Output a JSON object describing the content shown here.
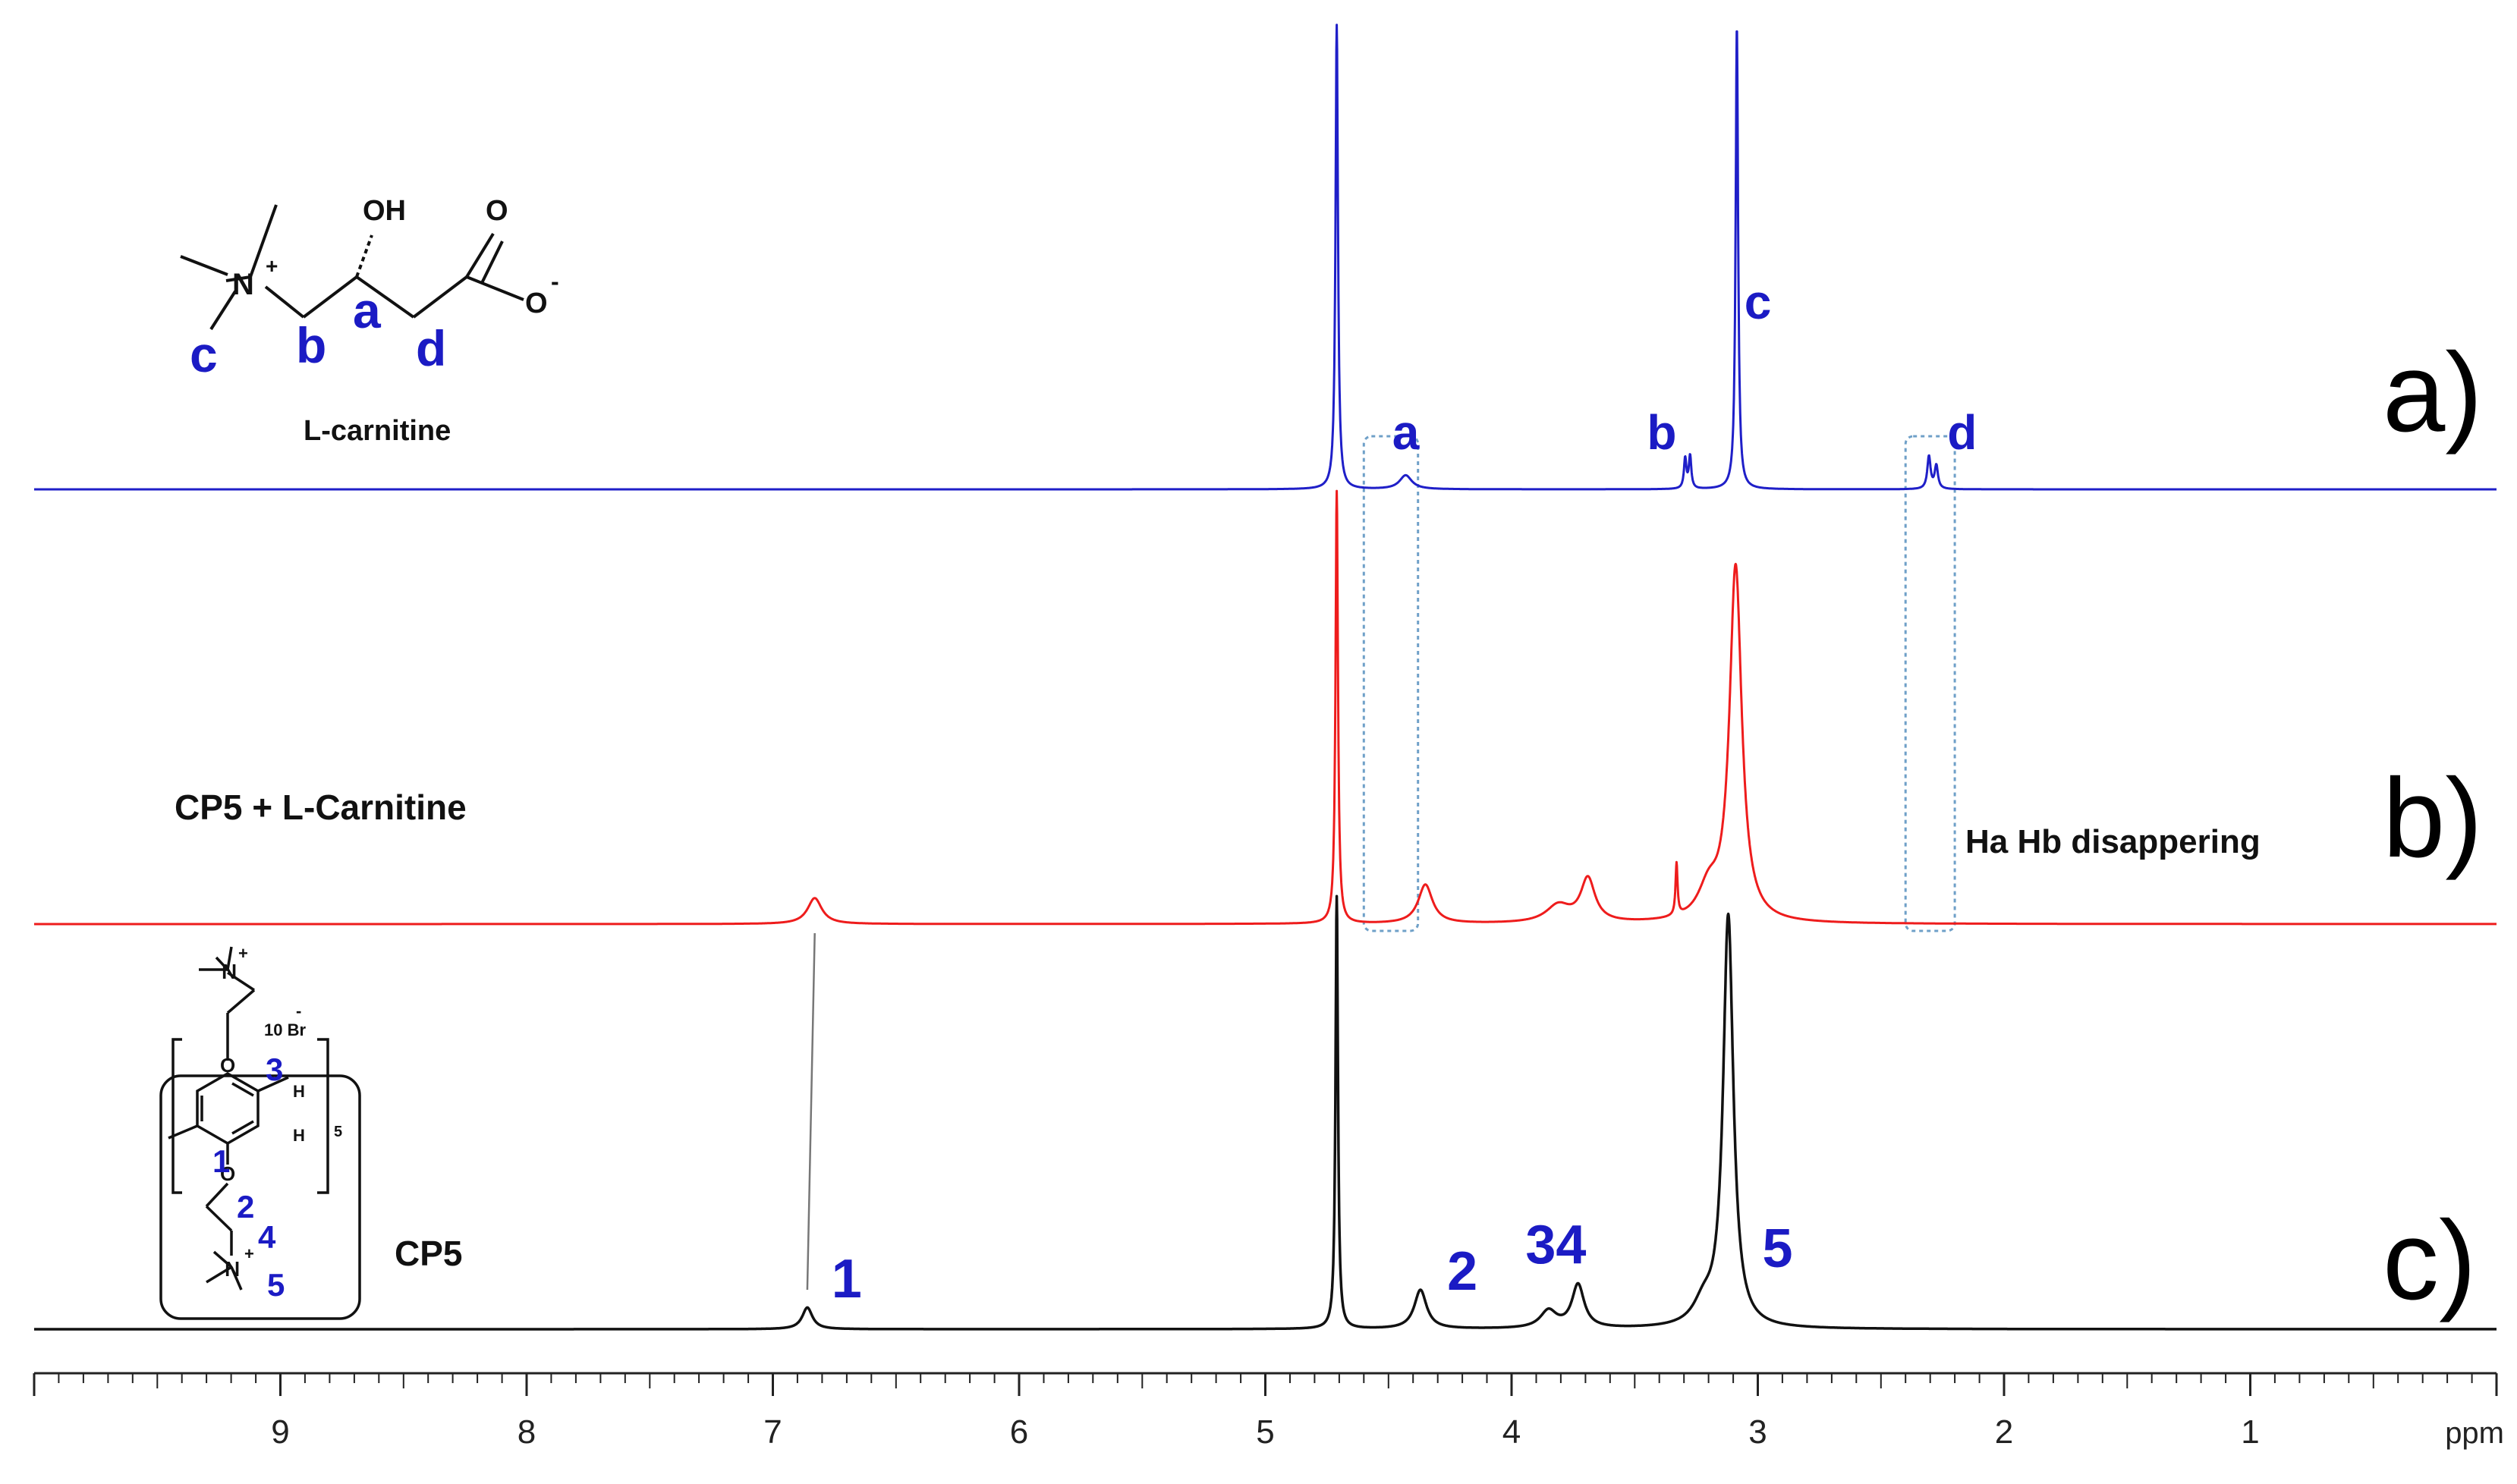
{
  "chart_data": {
    "type": "line",
    "x_axis": {
      "unit_label": "ppm",
      "reversed": true,
      "range": [
        10.0,
        0.0
      ],
      "major_ticks": [
        9,
        8,
        7,
        6,
        5,
        4,
        3,
        2,
        1
      ],
      "minor_tick_step": 0.1
    },
    "grid": false,
    "colors": {
      "a": "#1f1fc8",
      "b": "#ee1c1c",
      "c": "#111111",
      "annot": "#1b1bc4",
      "box": "#6fa0c8"
    },
    "series": [
      {
        "id": "a",
        "panel_label": "a)",
        "sample_label": "L-carnitine",
        "color": "#1f1fc8",
        "peaks": [
          {
            "ppm": 4.71,
            "height": 1.0,
            "width": 0.006
          },
          {
            "ppm": 4.43,
            "height": 0.03,
            "width": 0.03
          },
          {
            "ppm": 3.295,
            "height": 0.065,
            "width": 0.006
          },
          {
            "ppm": 3.275,
            "height": 0.07,
            "width": 0.006
          },
          {
            "ppm": 3.085,
            "height": 1.0,
            "width": 0.006
          },
          {
            "ppm": 2.305,
            "height": 0.07,
            "width": 0.008
          },
          {
            "ppm": 2.275,
            "height": 0.05,
            "width": 0.008
          }
        ],
        "peak_labels": [
          {
            "text": "a",
            "ppm": 4.43
          },
          {
            "text": "b",
            "ppm": 3.39
          },
          {
            "text": "c",
            "ppm": 3.0
          },
          {
            "text": "d",
            "ppm": 2.17
          }
        ]
      },
      {
        "id": "b",
        "panel_label": "b)",
        "sample_label": "CP5 + L-Carnitine",
        "annotation": "Ha Hb disappering",
        "color": "#ee1c1c",
        "peaks": [
          {
            "ppm": 6.83,
            "height": 0.06,
            "width": 0.035
          },
          {
            "ppm": 4.71,
            "height": 1.0,
            "width": 0.006
          },
          {
            "ppm": 4.35,
            "height": 0.09,
            "width": 0.035
          },
          {
            "ppm": 3.81,
            "height": 0.04,
            "width": 0.06
          },
          {
            "ppm": 3.69,
            "height": 0.1,
            "width": 0.035
          },
          {
            "ppm": 3.33,
            "height": 0.12,
            "width": 0.005
          },
          {
            "ppm": 3.2,
            "height": 0.07,
            "width": 0.05
          },
          {
            "ppm": 3.09,
            "height": 0.82,
            "width": 0.03
          }
        ],
        "box_regions": [
          [
            4.6,
            4.38
          ],
          [
            2.4,
            2.2
          ]
        ]
      },
      {
        "id": "c",
        "panel_label": "c)",
        "sample_label": "CP5",
        "color": "#111111",
        "peaks": [
          {
            "ppm": 6.86,
            "height": 0.05,
            "width": 0.025
          },
          {
            "ppm": 4.71,
            "height": 1.0,
            "width": 0.006
          },
          {
            "ppm": 4.37,
            "height": 0.09,
            "width": 0.03
          },
          {
            "ppm": 3.85,
            "height": 0.04,
            "width": 0.04
          },
          {
            "ppm": 3.73,
            "height": 0.1,
            "width": 0.03
          },
          {
            "ppm": 3.22,
            "height": 0.05,
            "width": 0.05
          },
          {
            "ppm": 3.12,
            "height": 0.95,
            "width": 0.025
          }
        ],
        "peak_labels": [
          {
            "text": "1",
            "ppm": 6.7
          },
          {
            "text": "2",
            "ppm": 4.2
          },
          {
            "text": "34",
            "ppm": 3.82
          },
          {
            "text": "5",
            "ppm": 2.92
          }
        ]
      }
    ],
    "correlation_line": {
      "from_ppm": 6.83,
      "to_ppm": 6.86
    }
  },
  "structures": {
    "carnitine": {
      "name": "L-carnitine",
      "atoms": {
        "n": "N",
        "n_charge": "+",
        "oh": "OH",
        "o_top": "O",
        "o_minus": "O",
        "o_charge": "-"
      },
      "position_labels": {
        "a": "a",
        "b": "b",
        "c": "c",
        "d": "d"
      }
    },
    "cp5": {
      "counterion": "10 Br",
      "counterion_charge": "-",
      "repeat_count": "5",
      "atoms": {
        "n_plus": "N",
        "charge": "+",
        "o": "O",
        "h": "H"
      },
      "position_labels": {
        "p1": "1",
        "p2": "2",
        "p3": "3",
        "p4": "4",
        "p5": "5"
      }
    }
  }
}
